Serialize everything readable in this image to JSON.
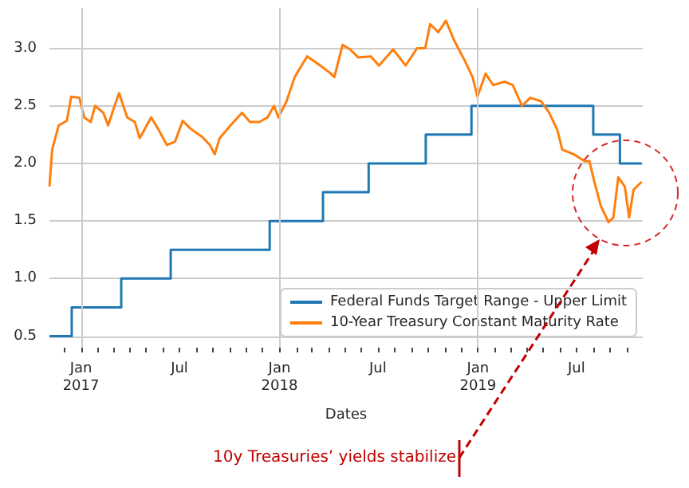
{
  "chart_data": {
    "type": "line",
    "xlabel": "Dates",
    "annotations": [
      "10y Treasuries’ yields stabilize"
    ],
    "legend": "bottom right",
    "grid": true,
    "marker": "none",
    "line_style": "solid",
    "xlim": [
      "2016-11-04",
      "2019-10-31"
    ],
    "ylim": [
      0.4,
      3.35
    ],
    "yticks": [
      0.5,
      {
        "value": 1,
        "label": "1.0"
      },
      1.5,
      {
        "value": 2,
        "label": "2.0"
      },
      2.5,
      {
        "value": 3,
        "label": "3.0"
      }
    ],
    "xticks": [
      {
        "value": "2016-12-01",
        "label": null
      },
      {
        "value": "2017-01-01",
        "label": "Jan\n2017"
      },
      {
        "value": "2017-02-01",
        "label": null
      },
      {
        "value": "2017-03-01",
        "label": null
      },
      {
        "value": "2017-04-01",
        "label": null
      },
      {
        "value": "2017-05-01",
        "label": null
      },
      {
        "value": "2017-06-01",
        "label": null
      },
      {
        "value": "2017-07-01",
        "label": "Jul"
      },
      {
        "value": "2017-08-01",
        "label": null
      },
      {
        "value": "2017-09-01",
        "label": null
      },
      {
        "value": "2017-10-01",
        "label": null
      },
      {
        "value": "2017-11-01",
        "label": null
      },
      {
        "value": "2017-12-01",
        "label": null
      },
      {
        "value": "2018-01-01",
        "label": "Jan\n2018"
      },
      {
        "value": "2018-02-01",
        "label": null
      },
      {
        "value": "2018-03-01",
        "label": null
      },
      {
        "value": "2018-04-01",
        "label": null
      },
      {
        "value": "2018-05-01",
        "label": null
      },
      {
        "value": "2018-06-01",
        "label": null
      },
      {
        "value": "2018-07-01",
        "label": "Jul"
      },
      {
        "value": "2018-08-01",
        "label": null
      },
      {
        "value": "2018-09-01",
        "label": null
      },
      {
        "value": "2018-10-01",
        "label": null
      },
      {
        "value": "2018-11-01",
        "label": null
      },
      {
        "value": "2018-12-01",
        "label": null
      },
      {
        "value": "2019-01-01",
        "label": "Jan\n2019"
      },
      {
        "value": "2019-02-01",
        "label": null
      },
      {
        "value": "2019-03-01",
        "label": null
      },
      {
        "value": "2019-04-01",
        "label": null
      },
      {
        "value": "2019-05-01",
        "label": null
      },
      {
        "value": "2019-06-01",
        "label": null
      },
      {
        "value": "2019-07-01",
        "label": "Jul"
      },
      {
        "value": "2019-08-01",
        "label": null
      },
      {
        "value": "2019-09-01",
        "label": null
      },
      {
        "value": "2019-10-01",
        "label": null
      }
    ],
    "series": [
      {
        "name": "Federal Funds Target Range - Upper Limit",
        "type": "step",
        "color": "#1f77b4",
        "x": [
          "2016-11-04",
          "2016-12-15",
          "2017-03-16",
          "2017-06-15",
          "2017-12-14",
          "2018-03-22",
          "2018-06-14",
          "2018-09-27",
          "2018-12-20",
          "2019-08-01",
          "2019-09-19",
          "2019-10-29"
        ],
        "values": [
          0.5,
          0.75,
          1.0,
          1.25,
          1.5,
          1.75,
          2.0,
          2.25,
          2.5,
          2.25,
          2.0,
          2.0
        ]
      },
      {
        "name": "10-Year Treasury Constant Maturity Rate",
        "color": "#ff7f0e",
        "x": [
          "2016-11-04",
          "2016-11-09",
          "2016-11-21",
          "2016-12-06",
          "2016-12-14",
          "2016-12-29",
          "2017-01-07",
          "2017-01-19",
          "2017-01-27",
          "2017-02-11",
          "2017-02-20",
          "2017-03-03",
          "2017-03-12",
          "2017-03-27",
          "2017-04-10",
          "2017-04-19",
          "2017-05-10",
          "2017-05-24",
          "2017-06-08",
          "2017-06-23",
          "2017-07-07",
          "2017-07-22",
          "2017-08-12",
          "2017-08-26",
          "2017-09-04",
          "2017-09-13",
          "2017-10-03",
          "2017-10-24",
          "2017-11-08",
          "2017-11-25",
          "2017-12-10",
          "2017-12-22",
          "2017-12-30",
          "2018-01-14",
          "2018-01-29",
          "2018-02-12",
          "2018-02-21",
          "2018-03-14",
          "2018-04-03",
          "2018-04-12",
          "2018-04-27",
          "2018-05-11",
          "2018-05-26",
          "2018-06-18",
          "2018-07-03",
          "2018-07-29",
          "2018-08-21",
          "2018-09-11",
          "2018-09-26",
          "2018-10-05",
          "2018-10-20",
          "2018-11-03",
          "2018-11-18",
          "2018-12-08",
          "2018-12-22",
          "2018-12-31",
          "2019-01-15",
          "2019-01-29",
          "2019-02-19",
          "2019-03-06",
          "2019-03-23",
          "2019-04-07",
          "2019-04-27",
          "2019-05-12",
          "2019-05-27",
          "2019-06-05",
          "2019-06-26",
          "2019-07-16",
          "2019-07-25",
          "2019-08-03",
          "2019-08-15",
          "2019-08-29",
          "2019-09-07",
          "2019-09-16",
          "2019-09-28",
          "2019-10-06",
          "2019-10-14",
          "2019-10-29"
        ],
        "values": [
          1.8,
          2.12,
          2.33,
          2.37,
          2.58,
          2.57,
          2.4,
          2.36,
          2.5,
          2.44,
          2.33,
          2.49,
          2.61,
          2.4,
          2.36,
          2.22,
          2.4,
          2.29,
          2.16,
          2.19,
          2.37,
          2.3,
          2.23,
          2.16,
          2.08,
          2.22,
          2.33,
          2.44,
          2.36,
          2.36,
          2.4,
          2.5,
          2.4,
          2.54,
          2.75,
          2.86,
          2.93,
          2.86,
          2.79,
          2.75,
          3.03,
          2.99,
          2.92,
          2.93,
          2.85,
          2.99,
          2.85,
          3.0,
          3.0,
          3.21,
          3.14,
          3.24,
          3.07,
          2.89,
          2.75,
          2.58,
          2.78,
          2.68,
          2.71,
          2.68,
          2.5,
          2.57,
          2.54,
          2.44,
          2.29,
          2.12,
          2.08,
          2.02,
          2.02,
          1.84,
          1.63,
          1.49,
          1.53,
          1.88,
          1.8,
          1.53,
          1.77,
          1.84
        ]
      }
    ]
  }
}
